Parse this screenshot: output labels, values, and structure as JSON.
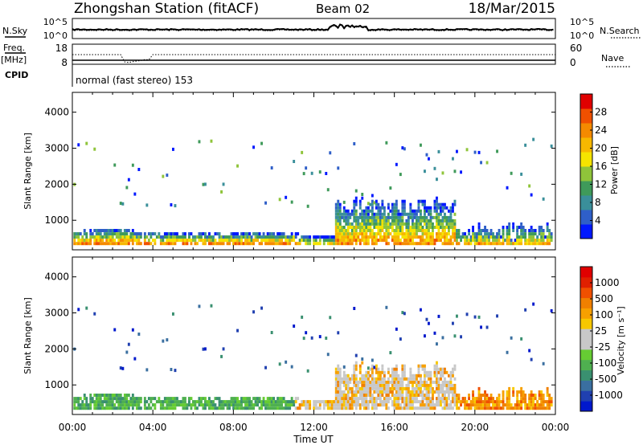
{
  "header": {
    "station": "Zhongshan Station (fitACF)",
    "beam": "Beam 02",
    "date": "18/Mar/2015"
  },
  "noise_panel": {
    "left_label": "N.Sky",
    "right_label": "N.Search",
    "left_ticks": [
      "10^5",
      "10^0"
    ],
    "right_ticks": [
      "10^5",
      "10^0"
    ],
    "level": 0.45,
    "bump_start_hour": 12.7,
    "bump_end_hour": 14.6
  },
  "freq_panel": {
    "left_label_1": "Freq.",
    "left_label_2": "[MHz]",
    "cpid_label": "CPID",
    "right_label": "Nave",
    "left_ticks": [
      "18",
      "8"
    ],
    "right_ticks": [
      "60",
      "0"
    ],
    "cpid_text": "normal (fast stereo) 153"
  },
  "chart_data": [
    {
      "type": "heatmap",
      "name": "power",
      "ylabel": "Slant Range [km]",
      "xlabel": "Time UT",
      "x_range_hours": [
        0,
        24
      ],
      "y_range_km": [
        180,
        4550
      ],
      "y_ticks": [
        1000,
        2000,
        3000,
        4000
      ],
      "colorbar_label": "Power [dB]",
      "colorbar_ticks": [
        "4",
        "8",
        "12",
        "16",
        "20",
        "24",
        "28"
      ],
      "colorbar_colors": [
        "#0018ff",
        "#2f5fc8",
        "#3a8f9a",
        "#3f9a5a",
        "#8fc43a",
        "#f5e400",
        "#f7b800",
        "#f58a00",
        "#f05000",
        "#e00000"
      ]
    },
    {
      "type": "heatmap",
      "name": "velocity",
      "ylabel": "Slant Range [km]",
      "xlabel": "Time UT",
      "x_range_hours": [
        0,
        24
      ],
      "y_range_km": [
        180,
        4550
      ],
      "y_ticks": [
        1000,
        2000,
        3000,
        4000
      ],
      "colorbar_label": "Velocity [m s⁻¹]",
      "colorbar_ticks": [
        "1000",
        "500",
        "100",
        "25",
        "-25",
        "-100",
        "-500",
        "-1000"
      ],
      "colorbar_colors": [
        "#0018cc",
        "#2040b0",
        "#3a6fa0",
        "#3a9070",
        "#4fb050",
        "#66cc33",
        "#c8c8c8",
        "#c8c8c8",
        "#f7c800",
        "#f7a000",
        "#f08000",
        "#f05000",
        "#e02000",
        "#e00000"
      ]
    }
  ],
  "time_axis": {
    "labels": [
      "00:00",
      "04:00",
      "08:00",
      "12:00",
      "16:00",
      "20:00",
      "00:00"
    ],
    "title": "Time UT"
  }
}
